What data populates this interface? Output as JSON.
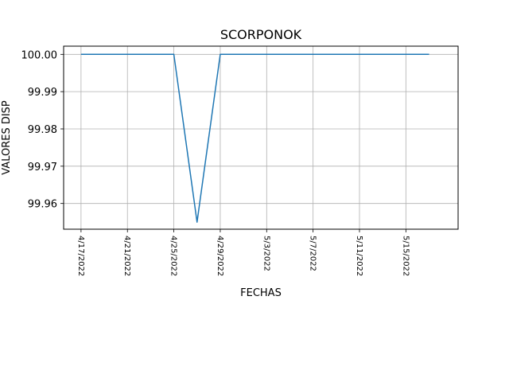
{
  "chart_data": {
    "type": "line",
    "title": "SCORPONOK",
    "xlabel": "FECHAS",
    "ylabel": "VALORES DISP",
    "x_tick_labels": [
      "4/17/2022",
      "4/21/2022",
      "4/25/2022",
      "4/29/2022",
      "5/3/2022",
      "5/7/2022",
      "5/11/2022",
      "5/15/2022"
    ],
    "y_tick_labels": [
      "99.96",
      "99.97",
      "99.98",
      "99.99",
      "100.00"
    ],
    "y_ticks": [
      99.96,
      99.97,
      99.98,
      99.99,
      100.0
    ],
    "x_ticks": [
      "2022-04-17",
      "2022-04-21",
      "2022-04-25",
      "2022-04-29",
      "2022-05-03",
      "2022-05-07",
      "2022-05-11",
      "2022-05-15"
    ],
    "xlim": [
      "2022-04-15T12:00",
      "2022-05-19T12:00"
    ],
    "ylim": [
      99.9531,
      100.0022
    ],
    "grid": true,
    "series": [
      {
        "color": "#1f77b4",
        "x": [
          "2022-04-17",
          "2022-04-25",
          "2022-04-27",
          "2022-04-29",
          "2022-05-17"
        ],
        "y": [
          100.0,
          100.0,
          99.955,
          100.0,
          100.0
        ]
      }
    ]
  }
}
